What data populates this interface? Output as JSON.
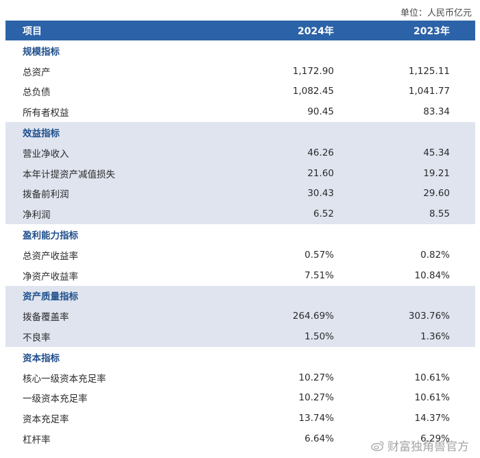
{
  "unit_label": "单位：人民币亿元",
  "header": {
    "item": "项目",
    "y2024": "2024年",
    "y2023": "2023年"
  },
  "sections": [
    {
      "title": "规模指标",
      "shaded": false,
      "rows": [
        {
          "label": "总资产",
          "v2024": "1,172.90",
          "v2023": "1,125.11"
        },
        {
          "label": "总负债",
          "v2024": "1,082.45",
          "v2023": "1,041.77"
        },
        {
          "label": "所有者权益",
          "v2024": "90.45",
          "v2023": "83.34"
        }
      ]
    },
    {
      "title": "效益指标",
      "shaded": true,
      "rows": [
        {
          "label": "营业净收入",
          "v2024": "46.26",
          "v2023": "45.34"
        },
        {
          "label": "本年计提资产减值损失",
          "v2024": "21.60",
          "v2023": "19.21"
        },
        {
          "label": "拨备前利润",
          "v2024": "30.43",
          "v2023": "29.60"
        },
        {
          "label": "净利润",
          "v2024": "6.52",
          "v2023": "8.55"
        }
      ]
    },
    {
      "title": "盈利能力指标",
      "shaded": false,
      "rows": [
        {
          "label": "总资产收益率",
          "v2024": "0.57%",
          "v2023": "0.82%"
        },
        {
          "label": "净资产收益率",
          "v2024": "7.51%",
          "v2023": "10.84%"
        }
      ]
    },
    {
      "title": "资产质量指标",
      "shaded": true,
      "rows": [
        {
          "label": "拨备覆盖率",
          "v2024": "264.69%",
          "v2023": "303.76%"
        },
        {
          "label": "不良率",
          "v2024": "1.50%",
          "v2023": "1.36%"
        }
      ]
    },
    {
      "title": "资本指标",
      "shaded": false,
      "rows": [
        {
          "label": "核心一级资本充足率",
          "v2024": "10.27%",
          "v2023": "10.61%"
        },
        {
          "label": "一级资本充足率",
          "v2024": "10.27%",
          "v2023": "10.61%"
        },
        {
          "label": "资本充足率",
          "v2024": "13.74%",
          "v2023": "14.37%"
        },
        {
          "label": "杠杆率",
          "v2024": "6.64%",
          "v2023": "6.29%"
        }
      ]
    }
  ],
  "watermark": "财富独角兽官方",
  "watermark_icon": "weibo-icon"
}
